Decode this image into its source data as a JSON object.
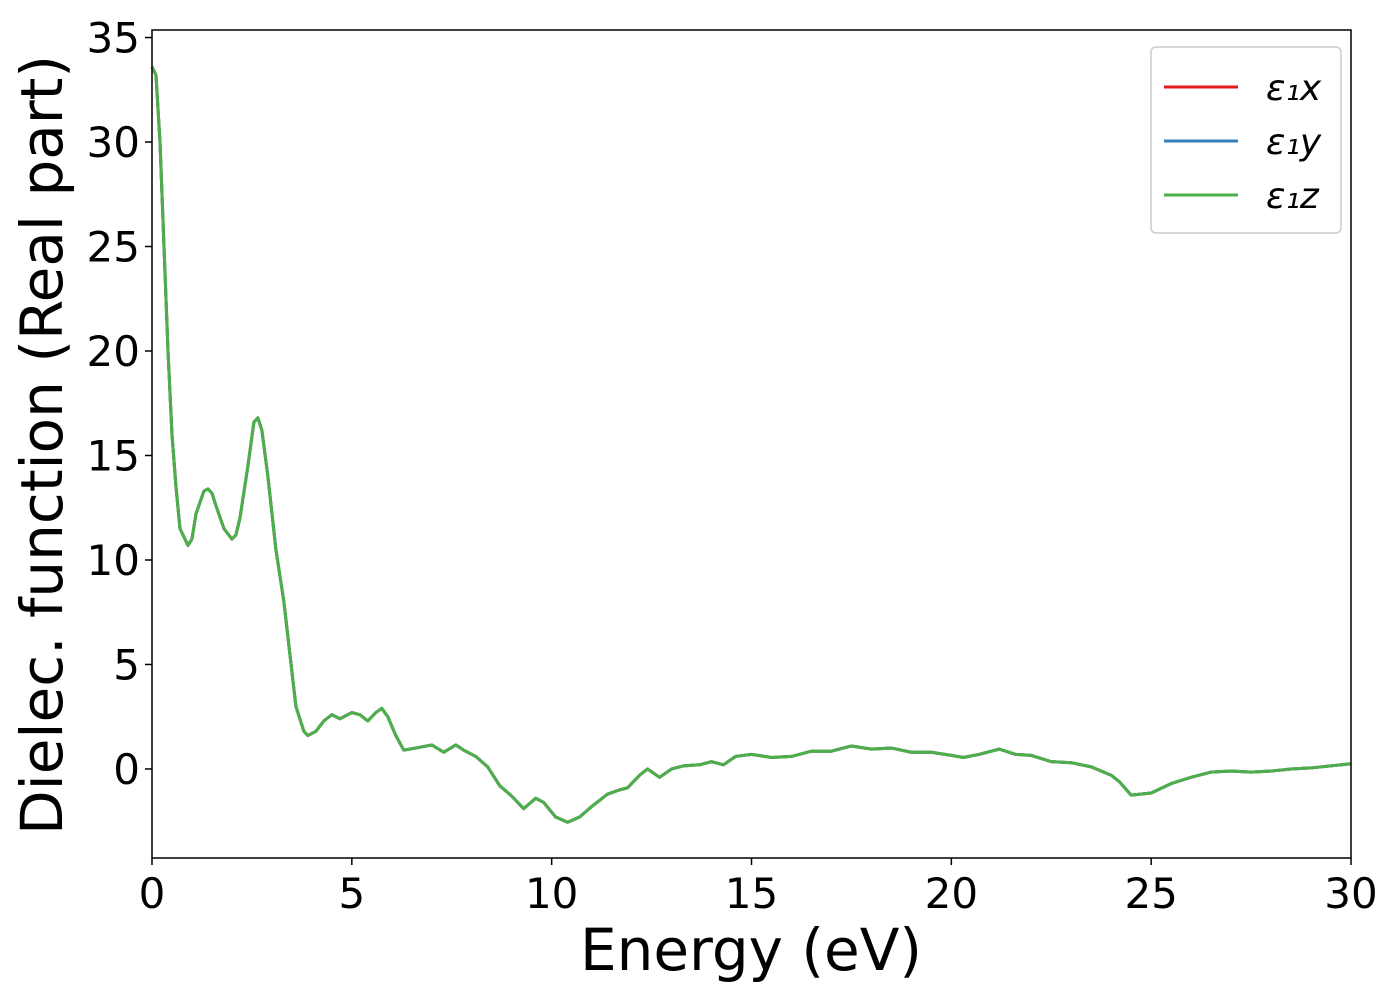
{
  "chart_data": {
    "type": "line",
    "x_label": "Energy (eV)",
    "y_label": "Dielec. function (Real part)",
    "x": [
      0,
      0.1,
      0.2,
      0.3,
      0.4,
      0.5,
      0.6,
      0.7,
      0.9,
      1.0,
      1.1,
      1.3,
      1.4,
      1.5,
      1.6,
      1.8,
      2.0,
      2.1,
      2.2,
      2.4,
      2.55,
      2.65,
      2.75,
      2.9,
      3.1,
      3.3,
      3.45,
      3.6,
      3.8,
      3.9,
      4.1,
      4.3,
      4.5,
      4.7,
      5.0,
      5.2,
      5.4,
      5.6,
      5.75,
      5.9,
      6.1,
      6.3,
      6.6,
      7.0,
      7.3,
      7.6,
      7.8,
      8.1,
      8.4,
      8.7,
      9.0,
      9.3,
      9.6,
      9.8,
      10.1,
      10.4,
      10.7,
      11.0,
      11.4,
      11.7,
      11.9,
      12.2,
      12.4,
      12.7,
      13.0,
      13.3,
      13.7,
      14.0,
      14.3,
      14.6,
      15.0,
      15.5,
      16.0,
      16.5,
      17.0,
      17.5,
      18.0,
      18.5,
      19.0,
      19.5,
      20.0,
      20.3,
      20.7,
      21.2,
      21.6,
      22.0,
      22.5,
      23.0,
      23.5,
      24.0,
      24.2,
      24.5,
      25.0,
      25.5,
      26.0,
      26.5,
      27.0,
      27.5,
      28.0,
      28.5,
      29.0,
      30.0
    ],
    "series": [
      {
        "name": "ε₁x",
        "color": "#e41a1c",
        "values": [
          33.6,
          33.2,
          30,
          25,
          20,
          16,
          13.5,
          11.5,
          10.7,
          11.0,
          12.2,
          13.3,
          13.4,
          13.2,
          12.6,
          11.5,
          11.0,
          11.2,
          12.0,
          14.5,
          16.6,
          16.8,
          16.2,
          14,
          10.5,
          8.0,
          5.5,
          3.0,
          1.8,
          1.6,
          1.8,
          2.3,
          2.6,
          2.4,
          2.7,
          2.6,
          2.3,
          2.7,
          2.9,
          2.5,
          1.6,
          0.9,
          1.0,
          1.15,
          0.8,
          1.15,
          0.9,
          0.6,
          0.1,
          -0.8,
          -1.3,
          -1.9,
          -1.4,
          -1.6,
          -2.3,
          -2.55,
          -2.3,
          -1.8,
          -1.2,
          -1.0,
          -0.9,
          -0.3,
          0.0,
          -0.4,
          0.0,
          0.15,
          0.2,
          0.35,
          0.2,
          0.6,
          0.7,
          0.55,
          0.6,
          0.85,
          0.85,
          1.1,
          0.95,
          1.0,
          0.8,
          0.8,
          0.65,
          0.55,
          0.7,
          0.95,
          0.7,
          0.65,
          0.35,
          0.3,
          0.1,
          -0.3,
          -0.6,
          -1.25,
          -1.15,
          -0.7,
          -0.4,
          -0.15,
          -0.1,
          -0.15,
          -0.1,
          0.0,
          0.05,
          0.25
        ]
      },
      {
        "name": "ε₁y",
        "color": "#377eb8",
        "values": [
          33.6,
          33.2,
          30,
          25,
          20,
          16,
          13.5,
          11.5,
          10.7,
          11.0,
          12.2,
          13.3,
          13.4,
          13.2,
          12.6,
          11.5,
          11.0,
          11.2,
          12.0,
          14.5,
          16.6,
          16.8,
          16.2,
          14,
          10.5,
          8.0,
          5.5,
          3.0,
          1.8,
          1.6,
          1.8,
          2.3,
          2.6,
          2.4,
          2.7,
          2.6,
          2.3,
          2.7,
          2.9,
          2.5,
          1.6,
          0.9,
          1.0,
          1.15,
          0.8,
          1.15,
          0.9,
          0.6,
          0.1,
          -0.8,
          -1.3,
          -1.9,
          -1.4,
          -1.6,
          -2.3,
          -2.55,
          -2.3,
          -1.8,
          -1.2,
          -1.0,
          -0.9,
          -0.3,
          0.0,
          -0.4,
          0.0,
          0.15,
          0.2,
          0.35,
          0.2,
          0.6,
          0.7,
          0.55,
          0.6,
          0.85,
          0.85,
          1.1,
          0.95,
          1.0,
          0.8,
          0.8,
          0.65,
          0.55,
          0.7,
          0.95,
          0.7,
          0.65,
          0.35,
          0.3,
          0.1,
          -0.3,
          -0.6,
          -1.25,
          -1.15,
          -0.7,
          -0.4,
          -0.15,
          -0.1,
          -0.15,
          -0.1,
          0.0,
          0.05,
          0.25
        ]
      },
      {
        "name": "ε₁z",
        "color": "#4daf4a",
        "values": [
          33.6,
          33.2,
          30,
          25,
          20,
          16,
          13.5,
          11.5,
          10.7,
          11.0,
          12.2,
          13.3,
          13.4,
          13.2,
          12.6,
          11.5,
          11.0,
          11.2,
          12.0,
          14.5,
          16.6,
          16.8,
          16.2,
          14,
          10.5,
          8.0,
          5.5,
          3.0,
          1.8,
          1.6,
          1.8,
          2.3,
          2.6,
          2.4,
          2.7,
          2.6,
          2.3,
          2.7,
          2.9,
          2.5,
          1.6,
          0.9,
          1.0,
          1.15,
          0.8,
          1.15,
          0.9,
          0.6,
          0.1,
          -0.8,
          -1.3,
          -1.9,
          -1.4,
          -1.6,
          -2.3,
          -2.55,
          -2.3,
          -1.8,
          -1.2,
          -1.0,
          -0.9,
          -0.3,
          0.0,
          -0.4,
          0.0,
          0.15,
          0.2,
          0.35,
          0.2,
          0.6,
          0.7,
          0.55,
          0.6,
          0.85,
          0.85,
          1.1,
          0.95,
          1.0,
          0.8,
          0.8,
          0.65,
          0.55,
          0.7,
          0.95,
          0.7,
          0.65,
          0.35,
          0.3,
          0.1,
          -0.3,
          -0.6,
          -1.25,
          -1.15,
          -0.7,
          -0.4,
          -0.15,
          -0.1,
          -0.15,
          -0.1,
          0.0,
          0.05,
          0.25
        ]
      }
    ],
    "xlim": [
      0,
      30
    ],
    "xticks": [
      0,
      5,
      10,
      15,
      20,
      25,
      30
    ],
    "ylim": [
      -4.26,
      35.36
    ],
    "yticks": [
      0,
      5,
      10,
      15,
      20,
      25,
      30,
      35
    ],
    "grid": false,
    "legend": "upper right"
  }
}
